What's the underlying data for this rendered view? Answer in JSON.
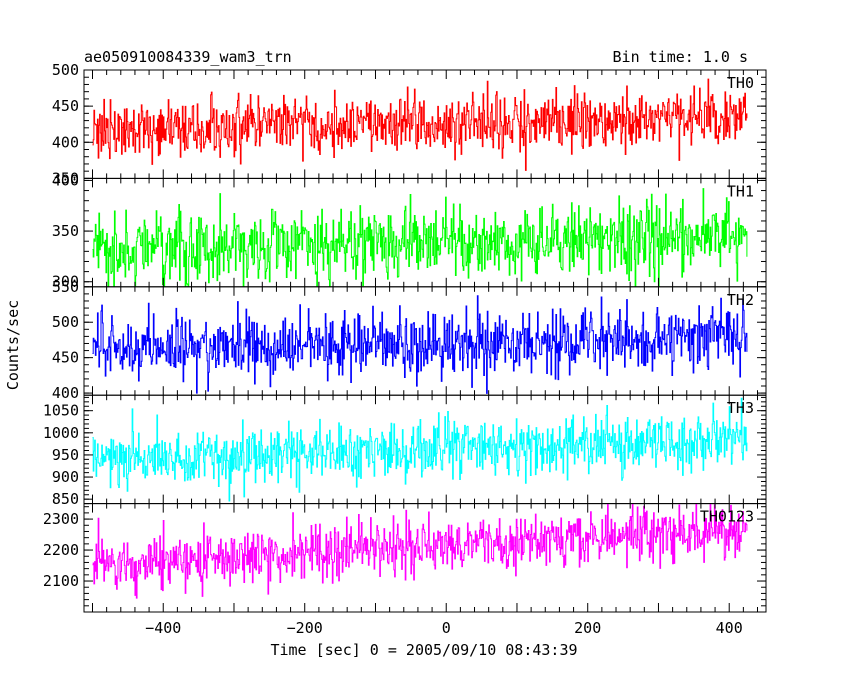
{
  "chart_data": {
    "type": "line",
    "title": "ae050910084339_wam3_trn",
    "subtitle": "Bin time: 1.0 s",
    "xlabel": "Time [sec] 0 = 2005/09/10 08:43:39",
    "ylabel": "Counts/sec",
    "xlim": [
      -512,
      452
    ],
    "x_ticks": [
      -400,
      -200,
      0,
      200,
      400
    ],
    "x_range_data": [
      -500,
      425
    ],
    "bin_time": 1.0,
    "grid": false,
    "panels": [
      {
        "name": "TH0",
        "color": "#ff0000",
        "ylim": [
          350,
          500
        ],
        "y_ticks": [
          350,
          400,
          450,
          500
        ],
        "y_tick_labels": [
          "350",
          "400",
          "450",
          "500"
        ],
        "level_start": 418,
        "level_end": 435,
        "noise": 20
      },
      {
        "name": "TH1",
        "color": "#00ff00",
        "ylim": [
          295,
          402
        ],
        "y_ticks": [
          300,
          350,
          400
        ],
        "y_tick_labels": [
          "300",
          "350",
          "400"
        ],
        "level_start": 332,
        "level_end": 345,
        "noise": 18
      },
      {
        "name": "TH2",
        "color": "#0000ff",
        "ylim": [
          397,
          550
        ],
        "y_ticks": [
          400,
          450,
          500,
          550
        ],
        "y_tick_labels": [
          "400",
          "450",
          "500",
          "550"
        ],
        "level_start": 462,
        "level_end": 480,
        "noise": 22
      },
      {
        "name": "TH3",
        "color": "#00ffff",
        "ylim": [
          840,
          1085
        ],
        "y_ticks": [
          850,
          900,
          950,
          1000,
          1050
        ],
        "y_tick_labels": [
          "850",
          "900",
          "950",
          "1000",
          "1050"
        ],
        "level_start": 940,
        "level_end": 985,
        "noise": 32
      },
      {
        "name": "TH0123",
        "color": "#ff00ff",
        "ylim": [
          2000,
          2350
        ],
        "y_ticks": [
          2100,
          2200,
          2300
        ],
        "y_tick_labels": [
          "2100",
          "2200",
          "2300"
        ],
        "level_start": 2150,
        "level_end": 2270,
        "noise": 45
      }
    ]
  }
}
